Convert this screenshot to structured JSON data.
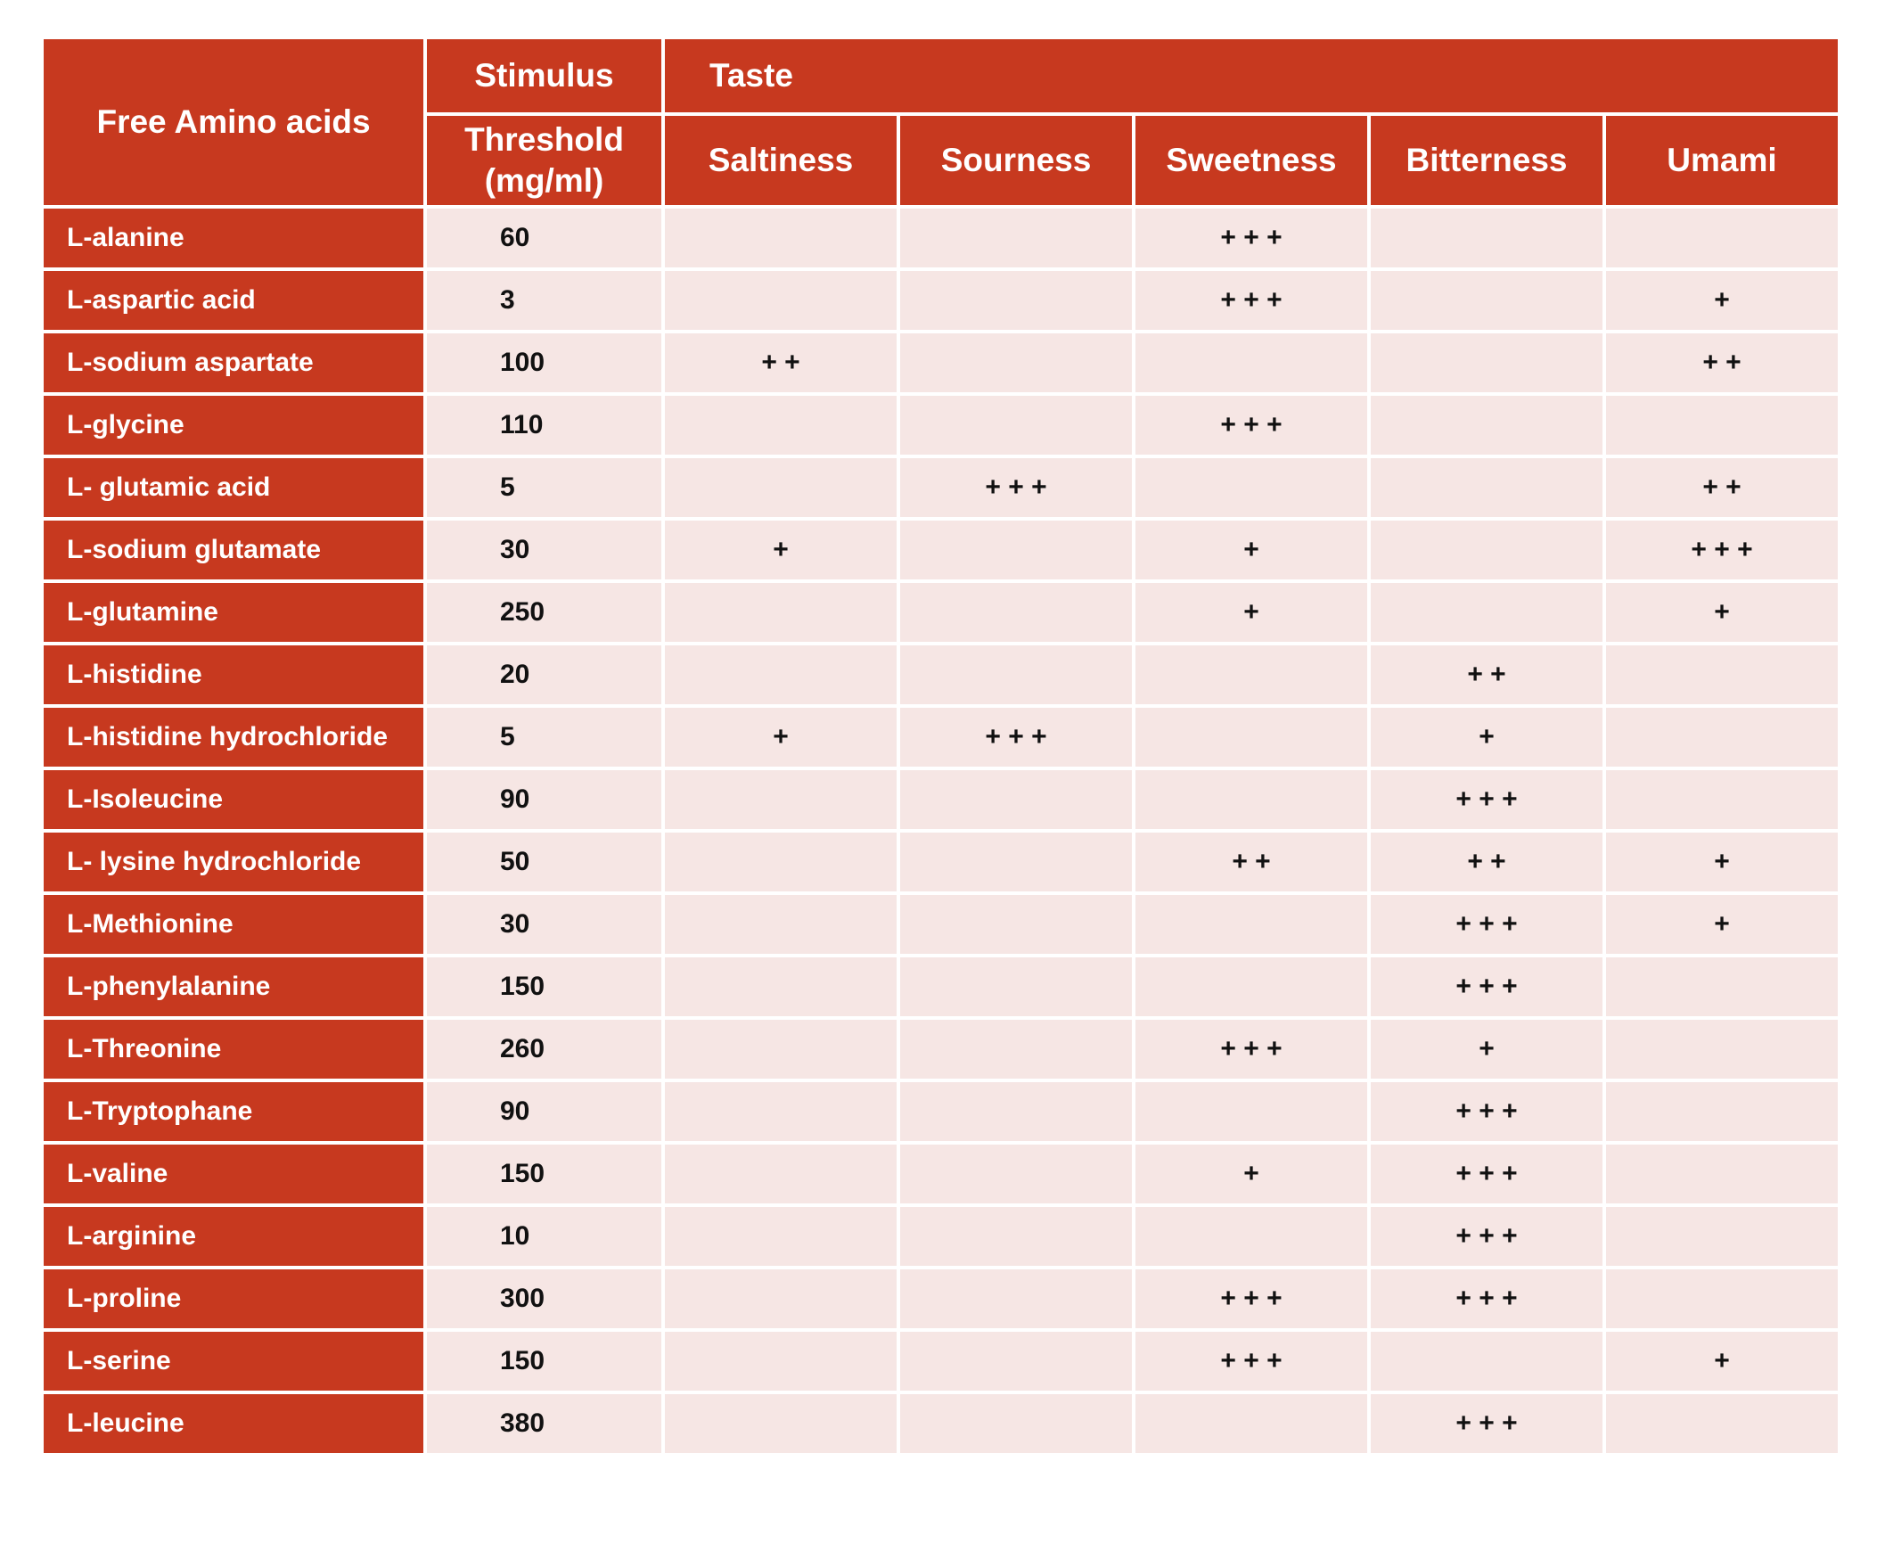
{
  "header": {
    "amino": "Free Amino acids",
    "stimulus": "Stimulus",
    "threshold": "Threshold\n(mg/ml)",
    "taste": "Taste",
    "tastes": [
      "Saltiness",
      "Sourness",
      "Sweetness",
      "Bitterness",
      "Umami"
    ]
  },
  "rows": [
    {
      "name": "L-alanine",
      "threshold": 60,
      "tastes": [
        null,
        null,
        "+ + +",
        null,
        null
      ]
    },
    {
      "name": "L-aspartic acid",
      "threshold": 3,
      "tastes": [
        null,
        null,
        "+ + +",
        null,
        "+"
      ]
    },
    {
      "name": "L-sodium aspartate",
      "threshold": 100,
      "tastes": [
        "+ +",
        null,
        null,
        null,
        "+ +"
      ]
    },
    {
      "name": "L-glycine",
      "threshold": 110,
      "tastes": [
        null,
        null,
        "+ + +",
        null,
        null
      ]
    },
    {
      "name": "L- glutamic acid",
      "threshold": 5,
      "tastes": [
        null,
        "+ + +",
        null,
        null,
        "+ +"
      ]
    },
    {
      "name": "L-sodium glutamate",
      "threshold": 30,
      "tastes": [
        "+",
        null,
        "+",
        null,
        "+ + +"
      ]
    },
    {
      "name": "L-glutamine",
      "threshold": 250,
      "tastes": [
        null,
        null,
        "+",
        null,
        "+"
      ]
    },
    {
      "name": "L-histidine",
      "threshold": 20,
      "tastes": [
        null,
        null,
        null,
        "+ +",
        null
      ]
    },
    {
      "name": "L-histidine hydrochloride",
      "threshold": 5,
      "tastes": [
        "+",
        "+ + +",
        null,
        "+",
        null
      ]
    },
    {
      "name": "L-Isoleucine",
      "threshold": 90,
      "tastes": [
        null,
        null,
        null,
        "+ + +",
        null
      ]
    },
    {
      "name": "L- lysine hydrochloride",
      "threshold": 50,
      "tastes": [
        null,
        null,
        "+ +",
        "+ +",
        "+"
      ]
    },
    {
      "name": "L-Methionine",
      "threshold": 30,
      "tastes": [
        null,
        null,
        null,
        "+ + +",
        "+"
      ]
    },
    {
      "name": "L-phenylalanine",
      "threshold": 150,
      "tastes": [
        null,
        null,
        null,
        "+ + +",
        null
      ]
    },
    {
      "name": "L-Threonine",
      "threshold": 260,
      "tastes": [
        null,
        null,
        "+ + +",
        "+",
        null
      ]
    },
    {
      "name": "L-Tryptophane",
      "threshold": 90,
      "tastes": [
        null,
        null,
        null,
        "+ + +",
        null
      ]
    },
    {
      "name": "L-valine",
      "threshold": 150,
      "tastes": [
        null,
        null,
        "+",
        "+ + +",
        null
      ]
    },
    {
      "name": "L-arginine",
      "threshold": 10,
      "tastes": [
        null,
        null,
        null,
        "+ + +",
        null
      ]
    },
    {
      "name": "L-proline",
      "threshold": 300,
      "tastes": [
        null,
        null,
        "+ + +",
        "+ + +",
        null
      ]
    },
    {
      "name": "L-serine",
      "threshold": 150,
      "tastes": [
        null,
        null,
        "+ + +",
        null,
        "+"
      ]
    },
    {
      "name": "L-leucine",
      "threshold": 380,
      "tastes": [
        null,
        null,
        null,
        "+ + +",
        null
      ]
    }
  ]
}
